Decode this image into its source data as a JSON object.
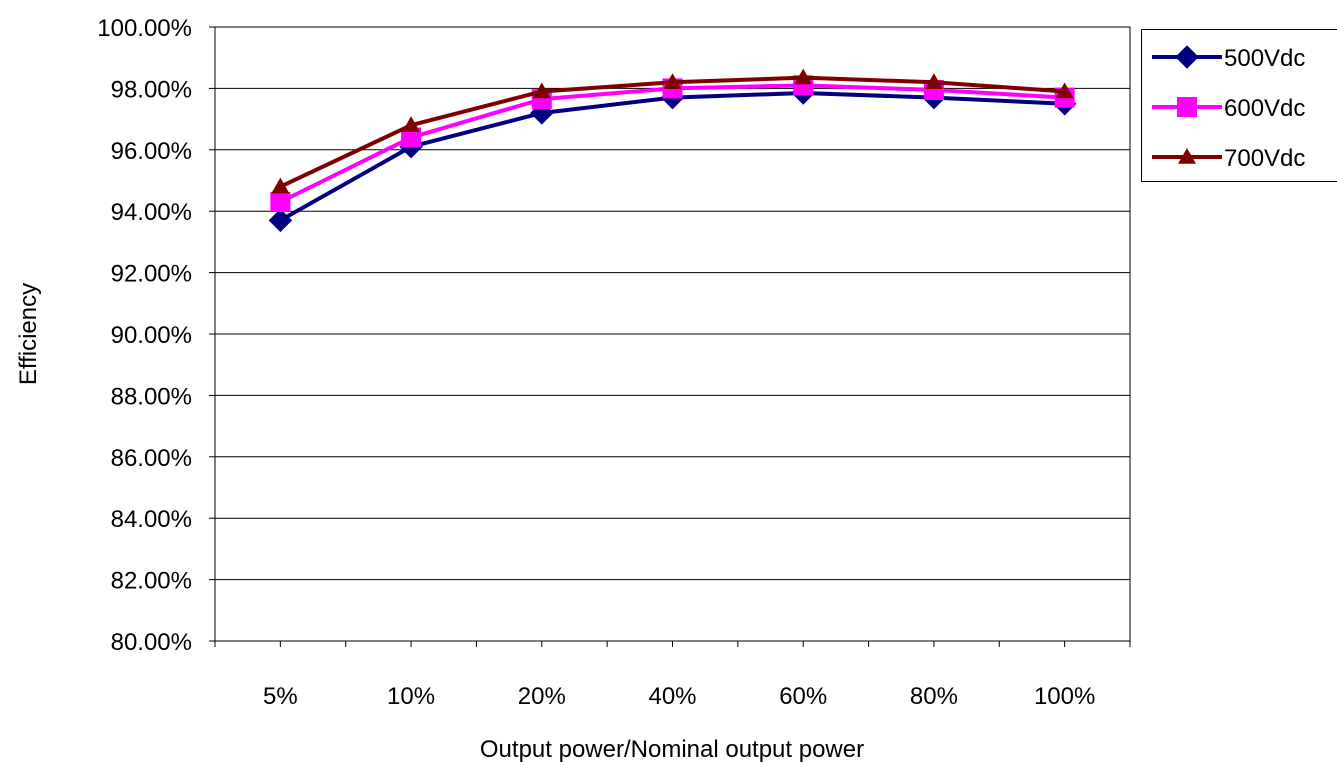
{
  "chart_data": {
    "type": "line",
    "categories": [
      "5%",
      "10%",
      "20%",
      "40%",
      "60%",
      "80%",
      "100%"
    ],
    "series": [
      {
        "name": "500Vdc",
        "values": [
          93.7,
          96.1,
          97.2,
          97.7,
          97.85,
          97.7,
          97.5
        ],
        "color": "#000080",
        "marker": "diamond"
      },
      {
        "name": "600Vdc",
        "values": [
          94.3,
          96.4,
          97.65,
          98.0,
          98.1,
          97.95,
          97.7
        ],
        "color": "#FF00FF",
        "marker": "square"
      },
      {
        "name": "700Vdc",
        "values": [
          94.8,
          96.8,
          97.9,
          98.2,
          98.35,
          98.2,
          97.9
        ],
        "color": "#800000",
        "marker": "triangle"
      }
    ],
    "title": "",
    "xlabel": "Output power/Nominal output power",
    "ylabel": "Efficiency",
    "ylim": [
      80,
      100
    ],
    "yticks": [
      80,
      82,
      84,
      86,
      88,
      90,
      92,
      94,
      96,
      98,
      100
    ],
    "ytick_labels": [
      "80.00%",
      "82.00%",
      "84.00%",
      "86.00%",
      "88.00%",
      "90.00%",
      "92.00%",
      "94.00%",
      "96.00%",
      "98.00%",
      "100.00%"
    ],
    "grid": "horizontal",
    "legend": "right"
  }
}
